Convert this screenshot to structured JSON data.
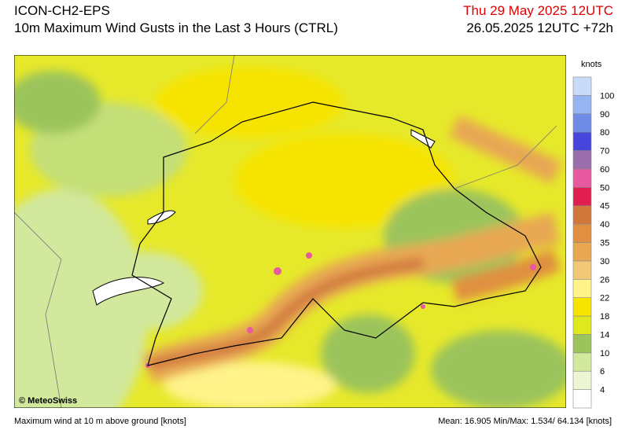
{
  "header": {
    "model": "ICON-CH2-EPS",
    "title": "10m Maximum Wind Gusts in the Last 3 Hours (CTRL)",
    "valid_time": "Thu 29 May 2025 12UTC",
    "run_time": "26.05.2025 12UTC +72h"
  },
  "legend": {
    "unit": "knots",
    "ticks": [
      4,
      6,
      10,
      14,
      18,
      22,
      26,
      30,
      35,
      40,
      45,
      50,
      60,
      70,
      80,
      90,
      100
    ],
    "colors": [
      "#ffffff",
      "#eef5d2",
      "#d2e89c",
      "#9cc45c",
      "#dfe81e",
      "#f6e400",
      "#fff38a",
      "#f0c878",
      "#e8a852",
      "#e09040",
      "#d0783c",
      "#e01e50",
      "#e85aa0",
      "#9a6eaa",
      "#4646dc",
      "#6e8ce6",
      "#96b4f0",
      "#c8dcfa"
    ]
  },
  "map": {
    "copyright": "© MeteoSwiss"
  },
  "footer": {
    "description": "Maximum wind at 10 m above ground [knots]",
    "stats": "Mean:  16.905 Min/Max:  1.534/ 64.134 [knots]"
  }
}
